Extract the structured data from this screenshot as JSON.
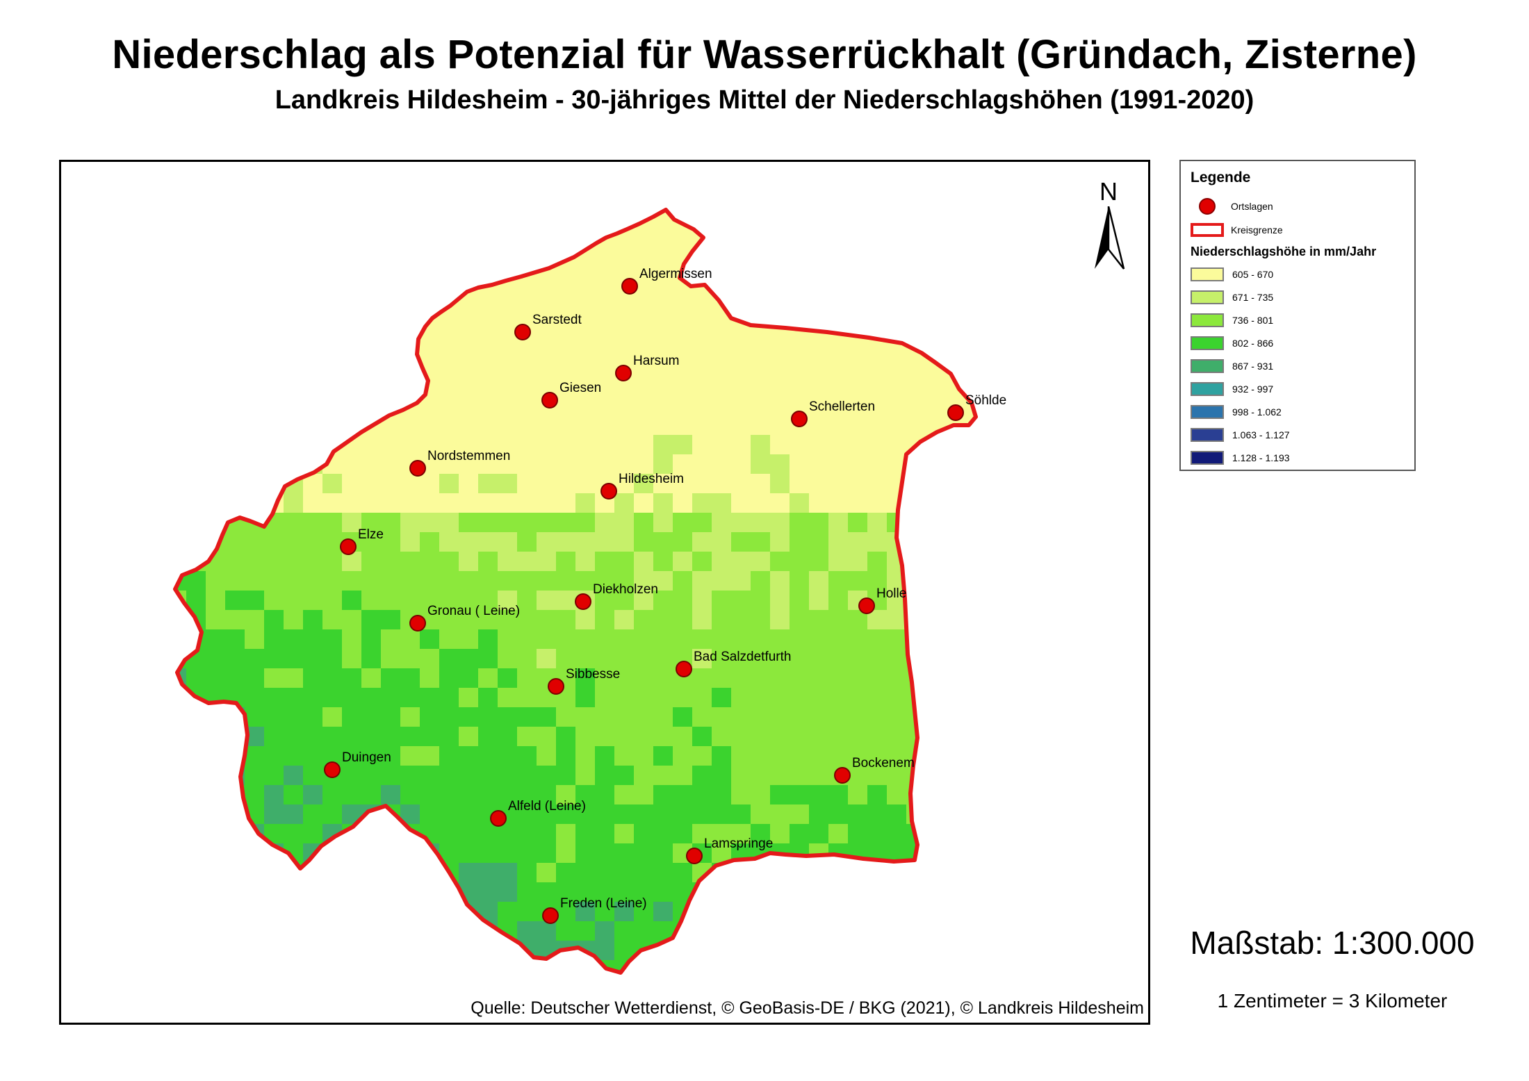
{
  "title": "Niederschlag als Potenzial für Wasserrückhalt (Gründach, Zisterne)",
  "subtitle": "Landkreis Hildesheim - 30-jähriges Mittel der Niederschlagshöhen (1991-2020)",
  "north_label": "N",
  "source": "Quelle: Deutscher Wetterdienst, © GeoBasis-DE / BKG (2021), © Landkreis Hildesheim",
  "legend": {
    "title": "Legende",
    "ortslagen_label": "Ortslagen",
    "kreisgrenze_label": "Kreisgrenze",
    "subtitle": "Niederschlagshöhe in mm/Jahr",
    "classes": [
      {
        "range": "605 - 670",
        "color": "#fbfb9b"
      },
      {
        "range": "671 - 735",
        "color": "#c6f06a"
      },
      {
        "range": "736 - 801",
        "color": "#8ce83c"
      },
      {
        "range": "802 - 866",
        "color": "#3bd32e"
      },
      {
        "range": "867 - 931",
        "color": "#3fae6a"
      },
      {
        "range": "932 - 997",
        "color": "#2fa2a0"
      },
      {
        "range": "998 - 1.062",
        "color": "#2b74ad"
      },
      {
        "range": "1.063 - 1.127",
        "color": "#2a3f93"
      },
      {
        "range": "1.128 - 1.193",
        "color": "#111a78"
      }
    ]
  },
  "places": [
    {
      "name": "Algermissen"
    },
    {
      "name": "Sarstedt"
    },
    {
      "name": "Harsum"
    },
    {
      "name": "Giesen"
    },
    {
      "name": "Schellerten"
    },
    {
      "name": "Söhlde"
    },
    {
      "name": "Nordstemmen"
    },
    {
      "name": "Hildesheim"
    },
    {
      "name": "Elze"
    },
    {
      "name": "Diekholzen"
    },
    {
      "name": "Holle"
    },
    {
      "name": "Gronau ( Leine)"
    },
    {
      "name": "Bad Salzdetfurth"
    },
    {
      "name": "Sibbesse"
    },
    {
      "name": "Duingen"
    },
    {
      "name": "Bockenem"
    },
    {
      "name": "Alfeld (Leine)"
    },
    {
      "name": "Lamspringe"
    },
    {
      "name": "Freden (Leine)"
    }
  ],
  "scale": "Maßstab: 1:300.000",
  "scale_note": "1 Zentimeter = 3 Kilometer"
}
